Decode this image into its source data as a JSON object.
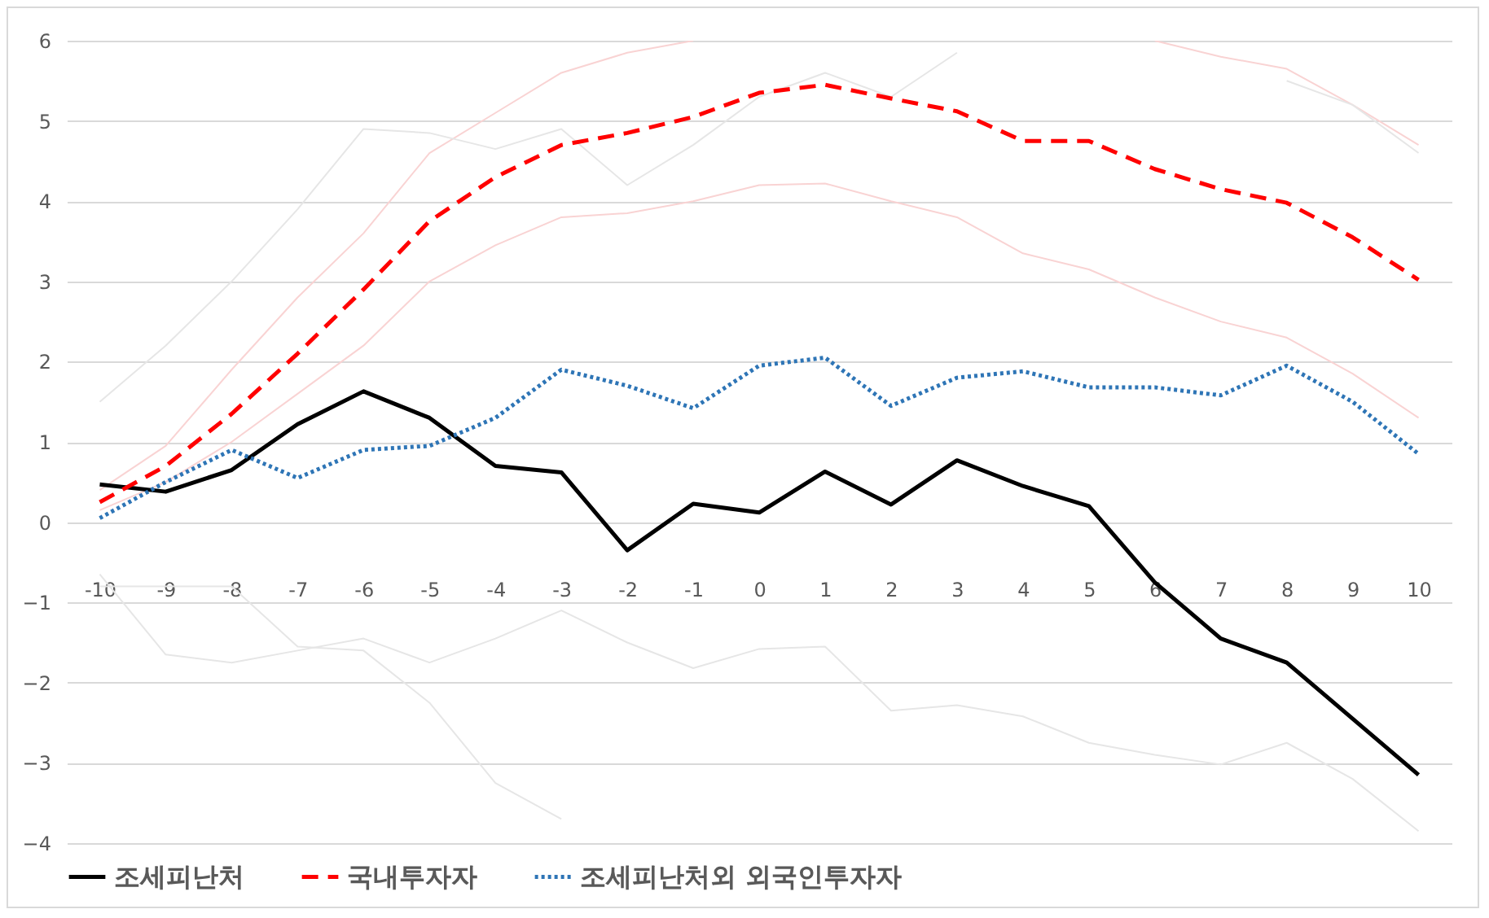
{
  "chart_data": {
    "type": "line",
    "categories": [
      "-10",
      "-9",
      "-8",
      "-7",
      "-6",
      "-5",
      "-4",
      "-3",
      "-2",
      "-1",
      "0",
      "1",
      "2",
      "3",
      "4",
      "5",
      "6",
      "7",
      "8",
      "9",
      "10"
    ],
    "ylim": [
      -4,
      6
    ],
    "yticks": [
      -4,
      -3,
      -2,
      -1,
      0,
      1,
      2,
      3,
      4,
      5,
      6
    ],
    "grid": "y",
    "legend": "bottom",
    "marker": "none",
    "series": [
      {
        "name": "조세피난처",
        "color": "#000000",
        "line_style": "solid",
        "values": [
          0.47,
          0.38,
          0.65,
          1.22,
          1.63,
          1.3,
          0.7,
          0.62,
          -0.35,
          0.23,
          0.12,
          0.63,
          0.22,
          0.77,
          0.45,
          0.2,
          -0.75,
          -1.45,
          -1.75,
          -2.45,
          -3.15
        ]
      },
      {
        "name": "국내투자자",
        "color": "#ff0000",
        "line_style": "dashed",
        "values": [
          0.25,
          0.7,
          1.35,
          2.1,
          2.9,
          3.75,
          4.3,
          4.7,
          4.85,
          5.05,
          5.35,
          5.45,
          5.28,
          5.12,
          4.75,
          4.75,
          4.4,
          4.15,
          3.98,
          3.55,
          3.02
        ]
      },
      {
        "name": "조세피난처외 외국인투자자",
        "color": "#2e75b6",
        "line_style": "dotted",
        "values": [
          0.05,
          0.5,
          0.9,
          0.55,
          0.9,
          0.95,
          1.3,
          1.9,
          1.7,
          1.42,
          1.95,
          2.05,
          1.45,
          1.8,
          1.88,
          1.68,
          1.68,
          1.58,
          1.95,
          1.5,
          0.85
        ]
      },
      {
        "color": "#f9d3d3",
        "line_style": "solid",
        "values": [
          0.4,
          0.95,
          1.9,
          2.8,
          3.6,
          4.6,
          5.1,
          5.6,
          5.85,
          6.0,
          null,
          null,
          null,
          null,
          null,
          null,
          6.0,
          5.8,
          5.65,
          5.2,
          4.7
        ]
      },
      {
        "color": "#f9d3d3",
        "line_style": "solid",
        "values": [
          0.15,
          0.5,
          1.0,
          1.6,
          2.2,
          3.0,
          3.45,
          3.8,
          3.85,
          4.0,
          4.2,
          4.22,
          4.0,
          3.8,
          3.35,
          3.15,
          2.8,
          2.5,
          2.3,
          1.85,
          1.3
        ]
      },
      {
        "color": "#e6e6e6",
        "line_style": "solid",
        "values": [
          1.5,
          2.2,
          3.0,
          3.9,
          4.9,
          4.85,
          4.65,
          4.9,
          4.2,
          4.7,
          5.3,
          5.6,
          5.3,
          5.85,
          null,
          null,
          null,
          null,
          5.5,
          5.2,
          4.6
        ]
      },
      {
        "color": "#e6e6e6",
        "line_style": "solid",
        "values": [
          -0.65,
          -1.65,
          -1.75,
          -1.6,
          -1.45,
          -1.75,
          -1.45,
          -1.1,
          -1.5,
          -1.82,
          -1.58,
          -1.55,
          -2.35,
          -2.28,
          -2.42,
          -2.75,
          -2.9,
          -3.02,
          -2.75,
          -3.2,
          -3.85
        ]
      },
      {
        "color": "#e6e6e6",
        "line_style": "solid",
        "values": [
          -0.8,
          -0.8,
          -0.8,
          -1.55,
          -1.6,
          -2.25,
          -3.25,
          -3.7,
          null,
          null,
          null,
          null,
          null,
          null,
          null,
          null,
          null,
          null,
          null,
          null,
          null
        ]
      }
    ]
  }
}
